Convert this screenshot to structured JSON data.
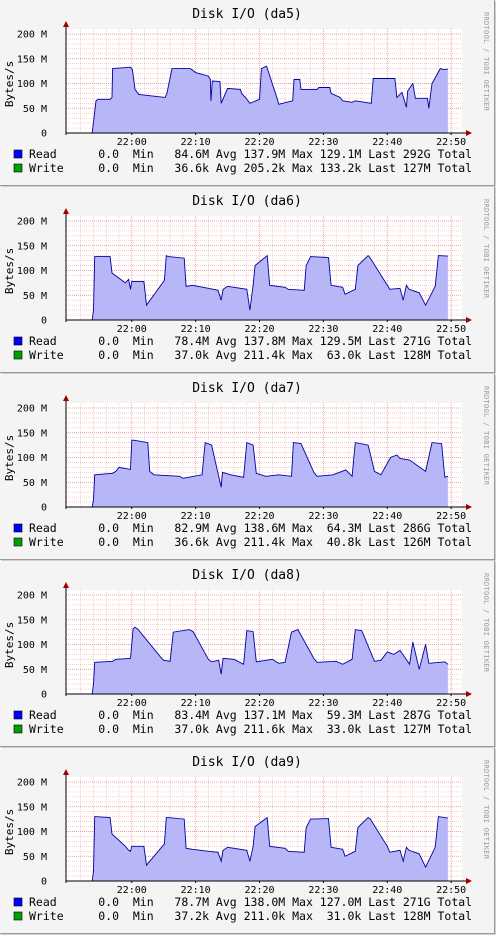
{
  "watermark": "RRDTOOL / TOBI OETIKER",
  "colors": {
    "read_fill": "#b7b7f7",
    "read_line": "#0000a0",
    "read_swatch": "#0000ff",
    "write_swatch": "#00a000",
    "grid_minor": "#ffb0b0",
    "grid_major": "#e88080",
    "arrow": "#a00000",
    "plot_bg": "#ffffff"
  },
  "chart_data": [
    {
      "type": "area",
      "title": "Disk I/O (da5)",
      "ylabel": "Bytes/s",
      "y_ticks": [
        "0",
        "50 M",
        "100 M",
        "150 M",
        "200 M"
      ],
      "ylim": [
        0,
        200
      ],
      "x_ticks": [
        "22:00",
        "22:10",
        "22:20",
        "22:30",
        "22:40",
        "22:50"
      ],
      "x_tick_minutes": [
        0,
        10,
        20,
        30,
        40,
        50
      ],
      "xlim_minutes": [
        -10.3,
        51.7
      ],
      "series": [
        {
          "name": "Read",
          "min": "0.0",
          "avg": "84.6M",
          "max": "137.9M",
          "last": "129.1M",
          "total": "292G",
          "x_minutes": [
            -6.2,
            -6.0,
            -5.6,
            -5.3,
            -3.4,
            -3.1,
            -3.0,
            -0.2,
            0.1,
            0.5,
            1.1,
            5.2,
            5.5,
            6.3,
            9.2,
            9.6,
            10.0,
            12.0,
            12.3,
            12.4,
            12.6,
            13.8,
            14.0,
            15.0,
            17.0,
            17.2,
            17.8,
            18.5,
            20.0,
            20.3,
            21.1,
            22.8,
            23.0,
            25.2,
            25.4,
            26.3,
            26.5,
            29.0,
            29.3,
            31.0,
            31.2,
            32.6,
            33.0,
            34.5,
            35.0,
            37.5,
            37.8,
            41.2,
            41.5,
            42.3,
            43.0,
            43.2,
            44.0,
            44.4,
            46.3,
            46.5,
            47.0,
            48.3,
            48.8,
            49.5
          ],
          "values": [
            0,
            22,
            65,
            68,
            68,
            72,
            130,
            133,
            128,
            88,
            78,
            72,
            80,
            130,
            130,
            126,
            122,
            115,
            108,
            65,
            105,
            104,
            60,
            90,
            88,
            80,
            72,
            60,
            68,
            130,
            135,
            68,
            58,
            65,
            108,
            108,
            88,
            88,
            92,
            92,
            80,
            72,
            65,
            62,
            65,
            60,
            110,
            110,
            72,
            82,
            52,
            85,
            100,
            70,
            70,
            50,
            100,
            130,
            128,
            129
          ]
        },
        {
          "name": "Write",
          "min": "0.0",
          "avg": "36.6k",
          "max": "205.2k",
          "last": "133.2k",
          "total": "127M"
        }
      ]
    },
    {
      "type": "area",
      "title": "Disk I/O (da6)",
      "ylabel": "Bytes/s",
      "y_ticks": [
        "0",
        "50 M",
        "100 M",
        "150 M",
        "200 M"
      ],
      "ylim": [
        0,
        200
      ],
      "x_ticks": [
        "22:00",
        "22:10",
        "22:20",
        "22:30",
        "22:40",
        "22:50"
      ],
      "x_tick_minutes": [
        0,
        10,
        20,
        30,
        40,
        50
      ],
      "xlim_minutes": [
        -10.3,
        51.7
      ],
      "series": [
        {
          "name": "Read",
          "min": "0.0",
          "avg": "78.4M",
          "max": "137.8M",
          "last": "129.5M",
          "total": "271G",
          "x_minutes": [
            -6.2,
            -6.0,
            -5.8,
            -3.4,
            -3.1,
            -1.0,
            -0.5,
            -0.2,
            0.0,
            1.9,
            2.3,
            5.1,
            5.4,
            5.7,
            8.2,
            8.5,
            9.5,
            12.0,
            13.5,
            14.0,
            14.3,
            15.0,
            18.0,
            18.5,
            19.0,
            19.3,
            21.2,
            21.6,
            24.0,
            24.5,
            27.0,
            27.3,
            28.0,
            30.8,
            31.2,
            33.0,
            33.4,
            35.0,
            35.4,
            37.0,
            37.3,
            40.0,
            40.4,
            42.0,
            42.5,
            43.0,
            43.4,
            45.0,
            46.0,
            47.5,
            48.0,
            49.5
          ],
          "values": [
            0,
            20,
            128,
            128,
            95,
            75,
            82,
            62,
            78,
            78,
            30,
            80,
            130,
            128,
            125,
            68,
            70,
            64,
            60,
            40,
            62,
            68,
            62,
            20,
            70,
            110,
            130,
            70,
            66,
            62,
            60,
            110,
            128,
            126,
            70,
            66,
            52,
            62,
            110,
            130,
            126,
            70,
            62,
            64,
            40,
            70,
            62,
            55,
            30,
            68,
            130,
            129
          ]
        },
        {
          "name": "Write",
          "min": "0.0",
          "avg": "37.0k",
          "max": "211.4k",
          "last": "63.0k",
          "total": "128M"
        }
      ]
    },
    {
      "type": "area",
      "title": "Disk I/O (da7)",
      "ylabel": "Bytes/s",
      "y_ticks": [
        "0",
        "50 M",
        "100 M",
        "150 M",
        "200 M"
      ],
      "ylim": [
        0,
        200
      ],
      "x_ticks": [
        "22:00",
        "22:10",
        "22:20",
        "22:30",
        "22:40",
        "22:50"
      ],
      "x_tick_minutes": [
        0,
        10,
        20,
        30,
        40,
        50
      ],
      "xlim_minutes": [
        -10.3,
        51.7
      ],
      "series": [
        {
          "name": "Read",
          "min": "0.0",
          "avg": "82.9M",
          "max": "138.6M",
          "last": "64.3M",
          "total": "286G",
          "x_minutes": [
            -6.2,
            -6.0,
            -5.8,
            -3.0,
            -2.5,
            -2.0,
            -0.2,
            0.0,
            0.3,
            2.5,
            2.8,
            3.5,
            7.5,
            8.0,
            11.0,
            11.5,
            12.5,
            13.5,
            14.0,
            14.2,
            15.5,
            17.5,
            18.0,
            19.0,
            19.5,
            21.0,
            23.0,
            25.0,
            25.3,
            26.5,
            28.5,
            29.0,
            31.5,
            33.5,
            34.5,
            35.0,
            37.0,
            38.0,
            39.0,
            40.5,
            41.5,
            42.0,
            43.5,
            46.0,
            47.0,
            48.5,
            49.0,
            49.5
          ],
          "values": [
            0,
            15,
            65,
            68,
            72,
            80,
            76,
            135,
            135,
            130,
            72,
            65,
            62,
            58,
            65,
            130,
            125,
            68,
            40,
            70,
            65,
            60,
            130,
            125,
            68,
            62,
            65,
            62,
            130,
            128,
            70,
            62,
            65,
            75,
            62,
            130,
            125,
            72,
            65,
            100,
            105,
            98,
            95,
            72,
            130,
            128,
            60,
            62
          ]
        },
        {
          "name": "Write",
          "min": "0.0",
          "avg": "36.6k",
          "max": "211.4k",
          "last": "40.8k",
          "total": "126M"
        }
      ]
    },
    {
      "type": "area",
      "title": "Disk I/O (da8)",
      "ylabel": "Bytes/s",
      "y_ticks": [
        "0",
        "50 M",
        "100 M",
        "150 M",
        "200 M"
      ],
      "ylim": [
        0,
        200
      ],
      "x_ticks": [
        "22:00",
        "22:10",
        "22:20",
        "22:30",
        "22:40",
        "22:50"
      ],
      "x_tick_minutes": [
        0,
        10,
        20,
        30,
        40,
        50
      ],
      "xlim_minutes": [
        -10.3,
        51.7
      ],
      "series": [
        {
          "name": "Read",
          "min": "0.0",
          "avg": "83.4M",
          "max": "137.1M",
          "last": "59.3M",
          "total": "287G",
          "x_minutes": [
            -6.2,
            -6.0,
            -5.8,
            -3.0,
            -2.5,
            -0.2,
            0.2,
            0.5,
            1.0,
            4.5,
            5.0,
            6.0,
            6.5,
            9.0,
            9.6,
            12.0,
            12.5,
            13.6,
            14.0,
            14.3,
            16.0,
            17.5,
            18.0,
            19.0,
            19.5,
            22.0,
            23.0,
            24.0,
            25.0,
            26.0,
            28.5,
            29.0,
            32.0,
            33.0,
            34.5,
            35.0,
            36.0,
            38.0,
            39.0,
            40.0,
            41.0,
            42.0,
            43.5,
            44.0,
            45.0,
            46.0,
            46.5,
            49.0,
            49.5
          ],
          "values": [
            0,
            20,
            64,
            66,
            70,
            72,
            132,
            135,
            130,
            75,
            68,
            66,
            125,
            130,
            126,
            70,
            65,
            68,
            40,
            72,
            70,
            60,
            128,
            126,
            65,
            70,
            62,
            64,
            125,
            130,
            72,
            64,
            66,
            60,
            70,
            130,
            128,
            66,
            68,
            85,
            80,
            88,
            60,
            105,
            50,
            100,
            62,
            65,
            60
          ]
        },
        {
          "name": "Write",
          "min": "0.0",
          "avg": "37.0k",
          "max": "211.6k",
          "last": "33.0k",
          "total": "127M"
        }
      ]
    },
    {
      "type": "area",
      "title": "Disk I/O (da9)",
      "ylabel": "Bytes/s",
      "y_ticks": [
        "0",
        "50 M",
        "100 M",
        "150 M",
        "200 M"
      ],
      "ylim": [
        0,
        200
      ],
      "x_ticks": [
        "22:00",
        "22:10",
        "22:20",
        "22:30",
        "22:40",
        "22:50"
      ],
      "x_tick_minutes": [
        0,
        10,
        20,
        30,
        40,
        50
      ],
      "xlim_minutes": [
        -10.3,
        51.7
      ],
      "series": [
        {
          "name": "Read",
          "min": "0.0",
          "avg": "78.7M",
          "max": "138.0M",
          "last": "127.0M",
          "total": "271G",
          "x_minutes": [
            -6.2,
            -6.0,
            -5.8,
            -3.4,
            -3.1,
            -1.0,
            -0.5,
            -0.2,
            0.0,
            1.9,
            2.3,
            5.1,
            5.4,
            5.7,
            8.2,
            8.5,
            9.5,
            12.0,
            13.5,
            14.0,
            14.3,
            15.0,
            18.0,
            18.5,
            19.0,
            19.3,
            21.2,
            21.6,
            24.0,
            24.5,
            27.0,
            27.3,
            28.0,
            30.8,
            31.2,
            33.0,
            33.4,
            35.0,
            35.4,
            37.0,
            37.3,
            40.0,
            40.4,
            42.0,
            42.5,
            43.0,
            43.4,
            45.0,
            46.0,
            47.5,
            48.0,
            49.5
          ],
          "values": [
            0,
            20,
            130,
            128,
            95,
            70,
            62,
            60,
            70,
            70,
            32,
            75,
            128,
            128,
            125,
            66,
            64,
            60,
            58,
            40,
            62,
            68,
            62,
            40,
            70,
            110,
            128,
            70,
            66,
            60,
            58,
            108,
            125,
            126,
            68,
            64,
            50,
            60,
            108,
            128,
            126,
            70,
            58,
            62,
            40,
            68,
            62,
            55,
            28,
            68,
            130,
            127
          ]
        },
        {
          "name": "Write",
          "min": "0.0",
          "avg": "37.2k",
          "max": "211.0k",
          "last": "31.0k",
          "total": "128M"
        }
      ]
    }
  ]
}
